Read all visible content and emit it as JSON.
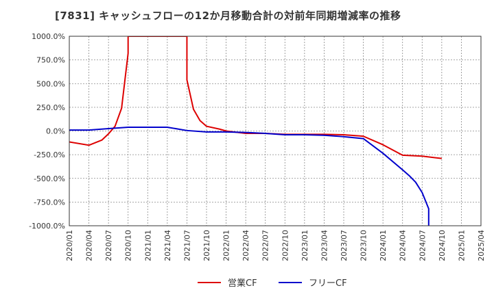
{
  "chart_data": {
    "type": "line",
    "title": "[7831]  キャッシュフローの12か月移動合計の対前年同期増減率の推移",
    "xlabel": "",
    "ylabel": "",
    "ylim": [
      -1000,
      1000
    ],
    "grid": true,
    "legend_position": "bottom",
    "x_ticks": [
      "2020/01",
      "2020/04",
      "2020/07",
      "2020/10",
      "2021/01",
      "2021/04",
      "2021/07",
      "2021/10",
      "2022/01",
      "2022/04",
      "2022/07",
      "2022/10",
      "2023/01",
      "2023/04",
      "2023/07",
      "2023/10",
      "2024/01",
      "2024/04",
      "2024/07",
      "2024/10",
      "2025/01",
      "2025/04"
    ],
    "y_ticks": [
      {
        "value": 1000,
        "label": "1000.0%"
      },
      {
        "value": 750,
        "label": "750.0%"
      },
      {
        "value": 500,
        "label": "500.0%"
      },
      {
        "value": 250,
        "label": "250.0%"
      },
      {
        "value": 0,
        "label": "0.0%"
      },
      {
        "value": -250,
        "label": "-250.0%"
      },
      {
        "value": -500,
        "label": "-500.0%"
      },
      {
        "value": -750,
        "label": "-750.0%"
      },
      {
        "value": -1000,
        "label": "-1000.0%"
      }
    ],
    "series": [
      {
        "name": "営業CF",
        "color": "#dd0000",
        "points": [
          [
            "2020/01",
            -115
          ],
          [
            "2020/04",
            -150
          ],
          [
            "2020/06",
            -95
          ],
          [
            "2020/07",
            -30
          ],
          [
            "2020/08",
            50
          ],
          [
            "2020/09",
            240
          ],
          [
            "2020/10",
            820
          ],
          [
            "2020/10",
            1000
          ],
          [
            "2021/07",
            1000
          ],
          [
            "2021/07",
            540
          ],
          [
            "2021/08",
            230
          ],
          [
            "2021/09",
            110
          ],
          [
            "2021/10",
            50
          ],
          [
            "2021/12",
            20
          ],
          [
            "2022/01",
            0
          ],
          [
            "2022/04",
            -25
          ],
          [
            "2022/07",
            -25
          ],
          [
            "2022/10",
            -35
          ],
          [
            "2023/01",
            -35
          ],
          [
            "2023/04",
            -35
          ],
          [
            "2023/07",
            -40
          ],
          [
            "2023/10",
            -55
          ],
          [
            "2024/01",
            -145
          ],
          [
            "2024/04",
            -255
          ],
          [
            "2024/07",
            -265
          ],
          [
            "2024/10",
            -290
          ]
        ]
      },
      {
        "name": "フリーCF",
        "color": "#0000cc",
        "points": [
          [
            "2020/01",
            10
          ],
          [
            "2020/04",
            10
          ],
          [
            "2020/07",
            25
          ],
          [
            "2020/10",
            40
          ],
          [
            "2021/01",
            40
          ],
          [
            "2021/04",
            40
          ],
          [
            "2021/07",
            5
          ],
          [
            "2021/10",
            -10
          ],
          [
            "2022/01",
            -10
          ],
          [
            "2022/04",
            -15
          ],
          [
            "2022/07",
            -25
          ],
          [
            "2022/10",
            -40
          ],
          [
            "2023/01",
            -40
          ],
          [
            "2023/04",
            -45
          ],
          [
            "2023/07",
            -60
          ],
          [
            "2023/10",
            -80
          ],
          [
            "2024/01",
            -235
          ],
          [
            "2024/04",
            -410
          ],
          [
            "2024/05",
            -470
          ],
          [
            "2024/06",
            -540
          ],
          [
            "2024/07",
            -650
          ],
          [
            "2024/08",
            -820
          ],
          [
            "2024/08",
            -1000
          ]
        ]
      }
    ]
  }
}
